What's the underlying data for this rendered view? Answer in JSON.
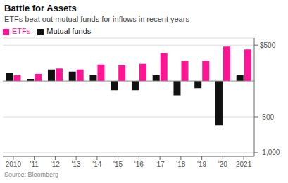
{
  "chart_data": {
    "type": "bar",
    "title": "Battle for Assets",
    "subtitle": "ETFs beat out mutual funds for inflows in recent years",
    "source": "Source: Bloomberg",
    "categories": [
      "2010",
      "'11",
      "'12",
      "'13",
      "'14",
      "'15",
      "'16",
      "'17",
      "'18",
      "'19",
      "'20",
      "2021"
    ],
    "series": [
      {
        "name": "Mutual funds",
        "color": "#111111",
        "values": [
          110,
          30,
          160,
          130,
          90,
          -130,
          -130,
          80,
          -200,
          -100,
          -620,
          80
        ]
      },
      {
        "name": "ETFs",
        "color": "#FF1493",
        "values": [
          80,
          100,
          175,
          160,
          230,
          220,
          240,
          390,
          280,
          280,
          480,
          440
        ]
      }
    ],
    "ylim": [
      -1050,
      600
    ],
    "yticks": [
      {
        "value": -1000,
        "label": "-1,000"
      },
      -500,
      {
        "value": 500,
        "label": "$500"
      }
    ],
    "grid": true,
    "legend": "top left"
  }
}
